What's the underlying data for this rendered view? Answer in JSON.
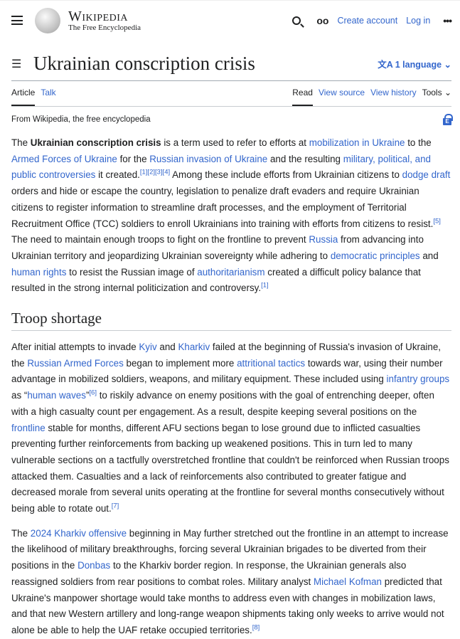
{
  "header": {
    "wordmark": "Wikipedia",
    "tagline": "The Free Encyclopedia",
    "create_account": "Create account",
    "log_in": "Log in",
    "more": "•••",
    "glasses": "oo"
  },
  "page": {
    "title": "Ukrainian conscription crisis",
    "language": "1 language",
    "tabs_left": [
      "Article",
      "Talk"
    ],
    "tabs_right": [
      "Read",
      "View source",
      "View history",
      "Tools"
    ],
    "from": "From Wikipedia, the free encyclopedia"
  },
  "section": {
    "heading": "Troop shortage"
  },
  "paragraphs": [
    [
      [
        "t",
        "The "
      ],
      [
        "b",
        "Ukrainian conscription crisis"
      ],
      [
        "t",
        " is a term used to refer to efforts at "
      ],
      [
        "a",
        "mobilization in Ukraine"
      ],
      [
        "t",
        " to the "
      ],
      [
        "a",
        "Armed Forces of Ukraine"
      ],
      [
        "t",
        " for the "
      ],
      [
        "a",
        "Russian invasion of Ukraine"
      ],
      [
        "t",
        " and the resulting "
      ],
      [
        "a",
        "military, political, and public controversies"
      ],
      [
        "t",
        " it created."
      ],
      [
        "s",
        "[1][2][3][4]"
      ],
      [
        "t",
        " Among these include efforts from Ukrainian citizens to "
      ],
      [
        "a",
        "dodge draft"
      ],
      [
        "t",
        " orders and hide or escape the country, legislation to penalize draft evaders and require Ukrainian citizens to register information to streamline draft processes, and the employment of Territorial Recruitment Office (TCC) soldiers to enroll Ukrainians into training with efforts from citizens to resist."
      ],
      [
        "s",
        "[5]"
      ],
      [
        "t",
        " The need to maintain enough troops to fight on the frontline to prevent "
      ],
      [
        "a",
        "Russia"
      ],
      [
        "t",
        " from advancing into Ukrainian territory and jeopardizing Ukrainian sovereignty while adhering to "
      ],
      [
        "a",
        "democratic principles"
      ],
      [
        "t",
        " and "
      ],
      [
        "a",
        "human rights"
      ],
      [
        "t",
        " to resist the Russian image of "
      ],
      [
        "a",
        "authoritarianism"
      ],
      [
        "t",
        " created a difficult policy balance that resulted in the strong internal politicization and controversy."
      ],
      [
        "s",
        "[1]"
      ]
    ],
    [
      [
        "t",
        "After initial attempts to invade "
      ],
      [
        "a",
        "Kyiv"
      ],
      [
        "t",
        " and "
      ],
      [
        "a",
        "Kharkiv"
      ],
      [
        "t",
        " failed at the beginning of Russia's invasion of Ukraine, the "
      ],
      [
        "a",
        "Russian Armed Forces"
      ],
      [
        "t",
        " began to implement more "
      ],
      [
        "a",
        "attritional tactics"
      ],
      [
        "t",
        " towards war, using their number advantage in mobilized soldiers, weapons, and military equipment. These included using "
      ],
      [
        "a",
        "infantry groups"
      ],
      [
        "t",
        " as “"
      ],
      [
        "a",
        "human waves"
      ],
      [
        "t",
        "”"
      ],
      [
        "s",
        "[6]"
      ],
      [
        "t",
        " to riskily advance on enemy positions with the goal of entrenching deeper, often with a high casualty count per engagement. As a result, despite keeping several positions on the "
      ],
      [
        "a",
        "frontline"
      ],
      [
        "t",
        " stable for months, different AFU sections began to lose ground due to inflicted casualties preventing further reinforcements from backing up weakened positions. This in turn led to many vulnerable sections on a tactfully overstretched frontline that couldn't be reinforced when Russian troops attacked them. Casualties and a lack of reinforcements also contributed to greater fatigue and decreased morale from several units operating at the frontline for several months consecutively without being able to rotate out."
      ],
      [
        "s",
        "[7]"
      ]
    ],
    [
      [
        "t",
        "The "
      ],
      [
        "a",
        "2024 Kharkiv offensive"
      ],
      [
        "t",
        " beginning in May further stretched out the frontline in an attempt to increase the likelihood of military breakthroughs, forcing several Ukrainian brigades to be diverted from their positions in the "
      ],
      [
        "a",
        "Donbas"
      ],
      [
        "t",
        " to the Kharkiv border region. In response, the Ukrainian generals also reassigned soldiers from rear positions to combat roles. Military analyst "
      ],
      [
        "a",
        "Michael Kofman"
      ],
      [
        "t",
        " predicted that Ukraine's manpower shortage would take months to address even with changes in mobilization laws, and that new Western artillery and long-range weapon shipments taking only weeks to arrive would not alone be able to help the UAF retake occupied territories."
      ],
      [
        "s",
        "[8]"
      ]
    ]
  ],
  "colors": {
    "link": "#3366cc",
    "text": "#202122"
  }
}
